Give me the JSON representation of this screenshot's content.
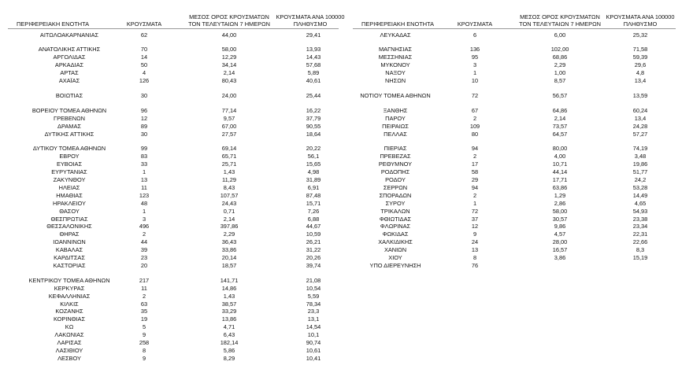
{
  "tables": [
    {
      "header": [
        "ΠΕΡΙΦΕΡΕΙΑΚΗ ΕΝΟΤΗΤΑ",
        "ΚΡΟΥΣΜΑΤΑ",
        [
          "ΜΕΣΟΣ ΟΡΟΣ ΚΡΟΥΣΜΑΤΩΝ",
          "ΤΟΝ ΤΕΛΕΥΤΑΙΩΝ 7 ΗΜΕΡΩΝ"
        ],
        [
          "ΚΡΟΥΣΜΑΤΑ ΑΝΑ 100000",
          "ΠΛΗΘΥΣΜΟ"
        ]
      ],
      "groups": [
        [
          [
            "ΑΙΤΩΛΟΑΚΑΡΝΑΝΙΑΣ",
            "62",
            "44,00",
            "29,41"
          ]
        ],
        [
          [
            "ΑΝΑΤΟΛΙΚΗΣ ΑΤΤΙΚΗΣ",
            "70",
            "58,00",
            "13,93"
          ],
          [
            "ΑΡΓΟΛΙΔΑΣ",
            "14",
            "12,29",
            "14,43"
          ],
          [
            "ΑΡΚΑΔΙΑΣ",
            "50",
            "34,14",
            "57,68"
          ],
          [
            "ΑΡΤΑΣ",
            "4",
            "2,14",
            "5,89"
          ],
          [
            "ΑΧΑΪΑΣ",
            "126",
            "80,43",
            "40,61"
          ]
        ],
        [
          [
            "ΒΟΙΩΤΙΑΣ",
            "30",
            "24,00",
            "25,44"
          ]
        ],
        [
          [
            "ΒΟΡΕΙΟΥ ΤΟΜΕΑ ΑΘΗΝΩΝ",
            "96",
            "77,14",
            "16,22"
          ],
          [
            "ΓΡΕΒΕΝΩΝ",
            "12",
            "9,57",
            "37,79"
          ],
          [
            "ΔΡΑΜΑΣ",
            "89",
            "67,00",
            "90,55"
          ],
          [
            "ΔΥΤΙΚΗΣ ΑΤΤΙΚΗΣ",
            "30",
            "27,57",
            "18,64"
          ]
        ],
        [
          [
            "ΔΥΤΙΚΟΥ ΤΟΜΕΑ ΑΘΗΝΩΝ",
            "99",
            "69,14",
            "20,22"
          ],
          [
            "ΕΒΡΟΥ",
            "83",
            "65,71",
            "56,1"
          ],
          [
            "ΕΥΒΟΙΑΣ",
            "33",
            "25,71",
            "15,65"
          ],
          [
            "ΕΥΡΥΤΑΝΙΑΣ",
            "1",
            "1,43",
            "4,98"
          ],
          [
            "ΖΑΚΥΝΘΟΥ",
            "13",
            "11,29",
            "31,89"
          ],
          [
            "ΗΛΕΙΑΣ",
            "11",
            "8,43",
            "6,91"
          ],
          [
            "ΗΜΑΘΙΑΣ",
            "123",
            "107,57",
            "87,48"
          ],
          [
            "ΗΡΑΚΛΕΙΟΥ",
            "48",
            "24,43",
            "15,71"
          ],
          [
            "ΘΑΣΟΥ",
            "1",
            "0,71",
            "7,26"
          ],
          [
            "ΘΕΣΠΡΩΤΙΑΣ",
            "3",
            "2,14",
            "6,88"
          ],
          [
            "ΘΕΣΣΑΛΟΝΙΚΗΣ",
            "496",
            "397,86",
            "44,67"
          ],
          [
            "ΘΗΡΑΣ",
            "2",
            "2,29",
            "10,59"
          ],
          [
            "ΙΩΑΝΝΙΝΩΝ",
            "44",
            "36,43",
            "26,21"
          ],
          [
            "ΚΑΒΑΛΑΣ",
            "39",
            "33,86",
            "31,22"
          ],
          [
            "ΚΑΡΔΙΤΣΑΣ",
            "23",
            "20,14",
            "20,26"
          ],
          [
            "ΚΑΣΤΟΡΙΑΣ",
            "20",
            "18,57",
            "39,74"
          ]
        ],
        [
          [
            "ΚΕΝΤΡΙΚΟΥ ΤΟΜΕΑ ΑΘΗΝΩΝ",
            "217",
            "141,71",
            "21,08"
          ],
          [
            "ΚΕΡΚΥΡΑΣ",
            "11",
            "14,86",
            "10,54"
          ],
          [
            "ΚΕΦΑΛΛΗΝΙΑΣ",
            "2",
            "1,43",
            "5,59"
          ],
          [
            "ΚΙΛΚΙΣ",
            "63",
            "38,57",
            "78,34"
          ],
          [
            "ΚΟΖΑΝΗΣ",
            "35",
            "33,29",
            "23,3"
          ],
          [
            "ΚΟΡΙΝΘΙΑΣ",
            "19",
            "13,86",
            "13,1"
          ],
          [
            "ΚΩ",
            "5",
            "4,71",
            "14,54"
          ],
          [
            "ΛΑΚΩΝΙΑΣ",
            "9",
            "6,43",
            "10,1"
          ],
          [
            "ΛΑΡΙΣΑΣ",
            "258",
            "182,14",
            "90,74"
          ],
          [
            "ΛΑΣΙΘΙΟΥ",
            "8",
            "5,86",
            "10,61"
          ],
          [
            "ΛΕΣΒΟΥ",
            "9",
            "8,29",
            "10,41"
          ]
        ]
      ]
    },
    {
      "header": [
        "ΠΕΡΙΦΕΡΕΙΑΚΗ ΕΝΟΤΗΤΑ",
        "ΚΡΟΥΣΜΑΤΑ",
        [
          "ΜΕΣΟΣ ΟΡΟΣ ΚΡΟΥΣΜΑΤΩΝ",
          "ΤΟΝ ΤΕΛΕΥΤΑΙΩΝ 7 ΗΜΕΡΩΝ"
        ],
        [
          "ΚΡΟΥΣΜΑΤΑ ΑΝΑ 100000",
          "ΠΛΗΘΥΣΜΟ"
        ]
      ],
      "groups": [
        [
          [
            "ΛΕΥΚΑΔΑΣ",
            "6",
            "6,00",
            "25,32"
          ]
        ],
        [
          [
            "ΜΑΓΝΗΣΙΑΣ",
            "136",
            "102,00",
            "71,58"
          ],
          [
            "ΜΕΣΣΗΝΙΑΣ",
            "95",
            "68,86",
            "59,39"
          ],
          [
            "ΜΥΚΟΝΟΥ",
            "3",
            "2,29",
            "29,6"
          ],
          [
            "ΝΑΞΟΥ",
            "1",
            "1,00",
            "4,8"
          ],
          [
            "ΝΗΣΩΝ",
            "10",
            "8,57",
            "13,4"
          ]
        ],
        [
          [
            "ΝΟΤΙΟΥ ΤΟΜΕΑ ΑΘΗΝΩΝ",
            "72",
            "56,57",
            "13,59"
          ]
        ],
        [
          [
            "ΞΑΝΘΗΣ",
            "67",
            "64,86",
            "60,24"
          ],
          [
            "ΠΑΡΟΥ",
            "2",
            "2,14",
            "13,4"
          ],
          [
            "ΠΕΙΡΑΙΩΣ",
            "109",
            "73,57",
            "24,28"
          ],
          [
            "ΠΕΛΛΑΣ",
            "80",
            "64,57",
            "57,27"
          ]
        ],
        [
          [
            "ΠΙΕΡΙΑΣ",
            "94",
            "80,00",
            "74,19"
          ],
          [
            "ΠΡΕΒΕΖΑΣ",
            "2",
            "4,00",
            "3,48"
          ],
          [
            "ΡΕΘΥΜΝΟΥ",
            "17",
            "10,71",
            "19,86"
          ],
          [
            "ΡΟΔΟΠΗΣ",
            "58",
            "44,14",
            "51,77"
          ],
          [
            "ΡΟΔΟΥ",
            "29",
            "17,71",
            "24,2"
          ],
          [
            "ΣΕΡΡΩΝ",
            "94",
            "63,86",
            "53,28"
          ],
          [
            "ΣΠΟΡΑΔΩΝ",
            "2",
            "1,29",
            "14,49"
          ],
          [
            "ΣΥΡΟΥ",
            "1",
            "2,86",
            "4,65"
          ],
          [
            "ΤΡΙΚΑΛΩΝ",
            "72",
            "58,00",
            "54,93"
          ],
          [
            "ΦΘΙΩΤΙΔΑΣ",
            "37",
            "30,57",
            "23,38"
          ],
          [
            "ΦΛΩΡΙΝΑΣ",
            "12",
            "9,86",
            "23,34"
          ],
          [
            "ΦΩΚΙΔΑΣ",
            "9",
            "4,57",
            "22,31"
          ],
          [
            "ΧΑΛΚΙΔΙΚΗΣ",
            "24",
            "28,00",
            "22,66"
          ],
          [
            "ΧΑΝΙΩΝ",
            "13",
            "16,57",
            "8,3"
          ],
          [
            "ΧΙΟΥ",
            "8",
            "3,86",
            "15,19"
          ],
          [
            "ΥΠΟ ΔΙΕΡΕΥΝΗΣΗ",
            "76"
          ]
        ]
      ]
    }
  ]
}
